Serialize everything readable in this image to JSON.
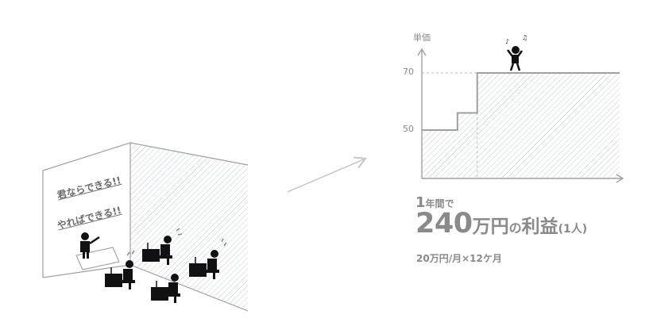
{
  "chart_data": {
    "type": "line",
    "title": "",
    "ylabel": "単価",
    "xlabel": "",
    "y_ticks": [
      50,
      70
    ],
    "ylim": [
      30,
      80
    ],
    "xlim": [
      0,
      100
    ],
    "steps": [
      {
        "x_start": 0,
        "x_end": 18,
        "y": 50
      },
      {
        "x_start": 18,
        "x_end": 28,
        "y": 56
      },
      {
        "x_start": 28,
        "x_end": 100,
        "y": 70
      }
    ],
    "series_color": "#a0a0a0",
    "grid": false
  },
  "classroom": {
    "slogans": [
      "君ならできる!!",
      "やればできる!!"
    ]
  },
  "profit": {
    "one": "1",
    "year": "年間で",
    "amount": "240",
    "man": "万円",
    "no": "の",
    "rieki": "利益",
    "per": "(1人)",
    "formula": "20万円/月×12ケ月"
  },
  "colors": {
    "line": "#a0a0a0",
    "hatch": "#b8c2d4",
    "text": "#8a8a8a",
    "figure": "#111111"
  }
}
